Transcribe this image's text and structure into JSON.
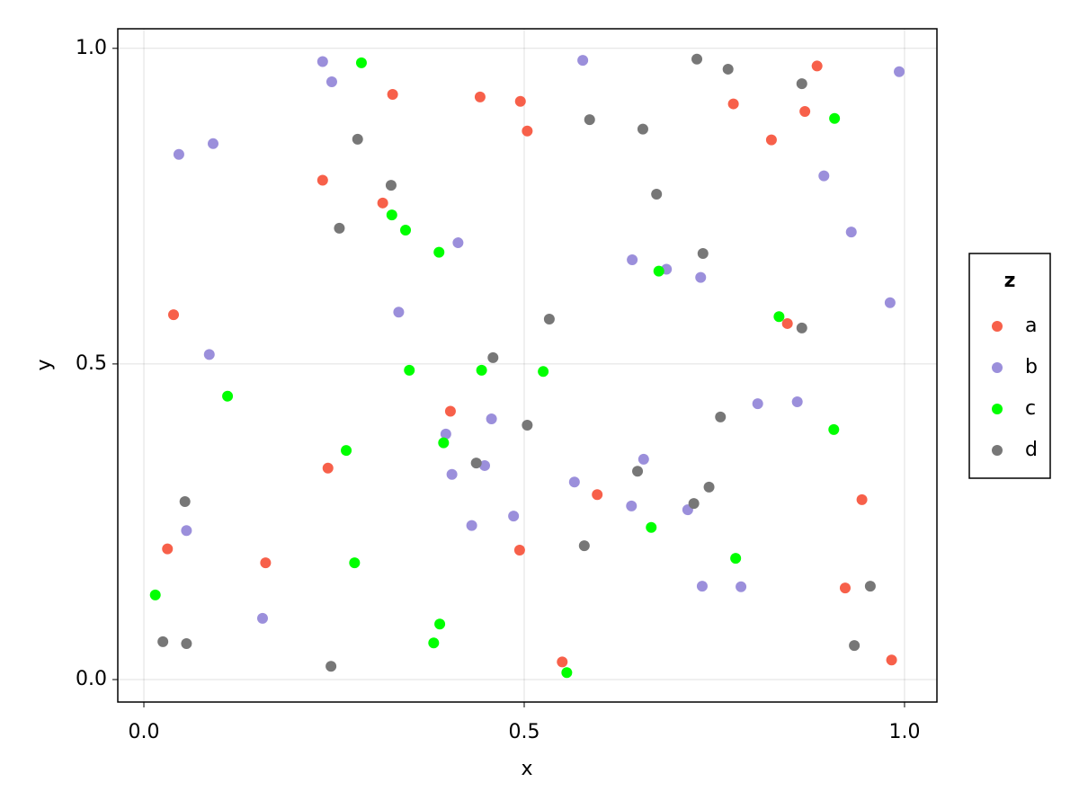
{
  "chart_data": {
    "type": "scatter",
    "x_label": "x",
    "y_label": "y",
    "legend_title": "z",
    "legend_position": "right",
    "grid": true,
    "xlim": [
      -0.0343,
      1.0426
    ],
    "ylim": [
      -0.0356,
      1.031
    ],
    "xticks": [
      {
        "value": 0,
        "label": "0.0"
      },
      0.5,
      {
        "value": 1,
        "label": "1.0"
      }
    ],
    "yticks": [
      {
        "value": 0,
        "label": "0.0"
      },
      0.5,
      {
        "value": 1,
        "label": "1.0"
      }
    ],
    "series": [
      {
        "name": "a",
        "color": "#f7604a",
        "x": [
          0.885,
          0.869,
          0.775,
          0.825,
          0.442,
          0.495,
          0.504,
          0.327,
          0.235,
          0.314,
          0.039,
          0.846,
          0.403,
          0.242,
          0.596,
          0.944,
          0.031,
          0.494,
          0.16,
          0.922,
          0.55,
          0.983
        ],
        "y": [
          0.972,
          0.9,
          0.912,
          0.855,
          0.923,
          0.916,
          0.869,
          0.927,
          0.791,
          0.755,
          0.578,
          0.564,
          0.425,
          0.335,
          0.293,
          0.285,
          0.207,
          0.205,
          0.185,
          0.145,
          0.028,
          0.031
        ]
      },
      {
        "name": "b",
        "color": "#9b8fdb",
        "x": [
          0.235,
          0.247,
          0.577,
          0.993,
          0.046,
          0.091,
          0.894,
          0.93,
          0.413,
          0.642,
          0.687,
          0.732,
          0.335,
          0.981,
          0.086,
          0.457,
          0.807,
          0.859,
          0.397,
          0.405,
          0.448,
          0.657,
          0.566,
          0.641,
          0.715,
          0.486,
          0.056,
          0.431,
          0.734,
          0.785,
          0.156
        ],
        "y": [
          0.979,
          0.947,
          0.981,
          0.963,
          0.832,
          0.849,
          0.798,
          0.709,
          0.692,
          0.665,
          0.65,
          0.637,
          0.582,
          0.597,
          0.515,
          0.413,
          0.437,
          0.44,
          0.389,
          0.325,
          0.339,
          0.349,
          0.313,
          0.275,
          0.269,
          0.259,
          0.236,
          0.244,
          0.148,
          0.147,
          0.097
        ]
      },
      {
        "name": "c",
        "color": "#00ff00",
        "x": [
          0.286,
          0.908,
          0.326,
          0.344,
          0.388,
          0.677,
          0.835,
          0.349,
          0.444,
          0.525,
          0.11,
          0.907,
          0.394,
          0.266,
          0.667,
          0.778,
          0.277,
          0.015,
          0.389,
          0.381,
          0.556
        ],
        "y": [
          0.977,
          0.889,
          0.736,
          0.712,
          0.677,
          0.647,
          0.575,
          0.49,
          0.49,
          0.488,
          0.449,
          0.396,
          0.375,
          0.363,
          0.241,
          0.192,
          0.185,
          0.134,
          0.088,
          0.058,
          0.011
        ]
      },
      {
        "name": "d",
        "color": "#777777",
        "x": [
          0.727,
          0.768,
          0.865,
          0.586,
          0.656,
          0.281,
          0.325,
          0.674,
          0.257,
          0.735,
          0.533,
          0.459,
          0.865,
          0.504,
          0.758,
          0.437,
          0.649,
          0.743,
          0.723,
          0.054,
          0.579,
          0.955,
          0.025,
          0.056,
          0.934,
          0.246
        ],
        "y": [
          0.983,
          0.967,
          0.944,
          0.887,
          0.872,
          0.856,
          0.783,
          0.769,
          0.715,
          0.675,
          0.571,
          0.51,
          0.557,
          0.403,
          0.416,
          0.343,
          0.33,
          0.305,
          0.279,
          0.282,
          0.212,
          0.148,
          0.06,
          0.057,
          0.054,
          0.021
        ]
      }
    ]
  }
}
